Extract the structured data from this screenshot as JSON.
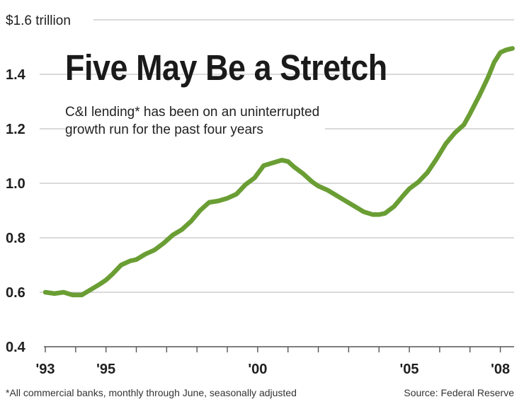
{
  "chart_data": {
    "type": "line",
    "title": "Five May Be a Stretch",
    "subtitle_lines": [
      "C&I lending* has been on an uninterrupted",
      "growth run for the past four years"
    ],
    "y_unit_label": "$1.6 trillion",
    "y_ticks": [
      "1.4",
      "1.2",
      "1.0",
      "0.8",
      "0.6",
      "0.4"
    ],
    "x_ticks": [
      "'93",
      "'95",
      "'00",
      "'05",
      "'08"
    ],
    "ylim": [
      0.4,
      1.6
    ],
    "xlim": [
      1993.0,
      2008.5
    ],
    "grid": true,
    "line_color": "#6a9e34",
    "series": [
      {
        "name": "C&I lending",
        "x": [
          1993.0,
          1993.3,
          1993.6,
          1993.9,
          1994.2,
          1994.5,
          1994.8,
          1995.0,
          1995.2,
          1995.5,
          1995.8,
          1996.0,
          1996.3,
          1996.6,
          1996.9,
          1997.2,
          1997.5,
          1997.8,
          1998.1,
          1998.4,
          1998.7,
          1999.0,
          1999.3,
          1999.6,
          1999.9,
          2000.2,
          2000.5,
          2000.8,
          2001.0,
          2001.2,
          2001.5,
          2001.8,
          2002.0,
          2002.3,
          2002.6,
          2002.9,
          2003.2,
          2003.5,
          2003.8,
          2004.0,
          2004.2,
          2004.5,
          2004.8,
          2005.0,
          2005.3,
          2005.6,
          2005.9,
          2006.2,
          2006.5,
          2006.8,
          2007.0,
          2007.3,
          2007.6,
          2007.8,
          2008.0,
          2008.2,
          2008.4
        ],
        "values": [
          0.6,
          0.595,
          0.6,
          0.59,
          0.59,
          0.61,
          0.63,
          0.645,
          0.665,
          0.7,
          0.715,
          0.72,
          0.74,
          0.755,
          0.78,
          0.81,
          0.83,
          0.86,
          0.9,
          0.93,
          0.935,
          0.945,
          0.96,
          0.995,
          1.02,
          1.065,
          1.075,
          1.085,
          1.08,
          1.06,
          1.035,
          1.005,
          0.99,
          0.975,
          0.955,
          0.935,
          0.915,
          0.895,
          0.885,
          0.885,
          0.89,
          0.915,
          0.955,
          0.98,
          1.005,
          1.04,
          1.09,
          1.145,
          1.185,
          1.215,
          1.255,
          1.32,
          1.39,
          1.445,
          1.48,
          1.49,
          1.495
        ]
      }
    ]
  },
  "footnote": "*All commercial banks, monthly through June, seasonally adjusted",
  "source": "Source: Federal Reserve"
}
